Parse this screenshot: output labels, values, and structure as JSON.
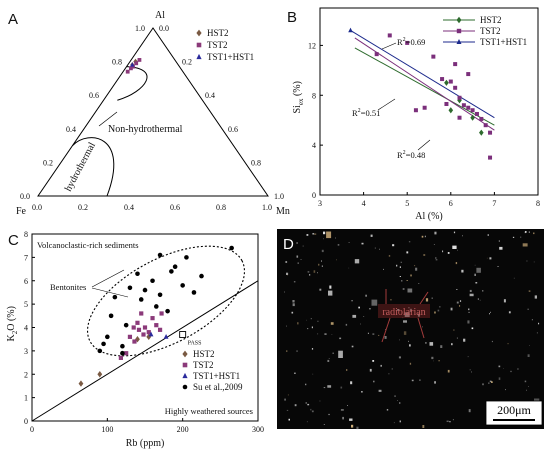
{
  "panels": {
    "A": {
      "letter": "A"
    },
    "B": {
      "letter": "B"
    },
    "C": {
      "letter": "C"
    },
    "D": {
      "letter": "D"
    }
  },
  "chart_data": [
    {
      "type": "scatter",
      "panel": "A",
      "ternary": true,
      "vertices": {
        "top": "Al",
        "left": "Fe",
        "right": "Mn"
      },
      "ticks": [
        "0.0",
        "0.2",
        "0.4",
        "0.6",
        "0.8",
        "1.0"
      ],
      "region_labels": [
        "Non-hydrothermal",
        "hydrothermal"
      ],
      "legend": [
        {
          "name": "HST2",
          "marker": "diamond",
          "color": "#7a5a43"
        },
        {
          "name": "TST2",
          "marker": "square",
          "color": "#8b3a7a"
        },
        {
          "name": "TST1+HST1",
          "marker": "triangle",
          "color": "#2a2a9c"
        }
      ],
      "series": [
        {
          "name": "HST2",
          "points": [
            [
              0.78,
              0.21
            ],
            [
              0.8,
              0.19
            ]
          ]
        },
        {
          "name": "TST2",
          "points": [
            [
              0.74,
              0.25
            ],
            [
              0.76,
              0.23
            ],
            [
              0.77,
              0.22
            ],
            [
              0.79,
              0.2
            ],
            [
              0.81,
              0.18
            ]
          ]
        },
        {
          "name": "TST1+HST1",
          "points": [
            [
              0.78,
              0.21
            ]
          ]
        }
      ]
    },
    {
      "type": "scatter",
      "panel": "B",
      "xlabel": "Al (%)",
      "ylabel": "Si",
      "ylabel_sub": "ex",
      "ylabel_unit": "(%)",
      "xlim": [
        3,
        8
      ],
      "ylim": [
        0,
        15
      ],
      "xticks": [
        3,
        4,
        5,
        6,
        7,
        8
      ],
      "yticks": [
        0,
        4,
        8,
        12
      ],
      "legend": [
        {
          "name": "HST2",
          "color": "#2e6b2e"
        },
        {
          "name": "TST2",
          "color": "#7b2f7b"
        },
        {
          "name": "TST1+HST1",
          "color": "#1c2a8c"
        }
      ],
      "annotations": [
        {
          "text": "R",
          "sup": "2",
          "value": "=0.69"
        },
        {
          "text": "R",
          "sup": "2",
          "value": "=0.51"
        },
        {
          "text": "R",
          "sup": "2",
          "value": "=0.48"
        }
      ],
      "series": [
        {
          "name": "HST2",
          "points": [
            [
              5.9,
              9.0
            ],
            [
              6.2,
              7.6
            ],
            [
              6.5,
              6.2
            ],
            [
              6.7,
              5.0
            ],
            [
              6.0,
              6.8
            ]
          ]
        },
        {
          "name": "TST2",
          "points": [
            [
              4.3,
              11.3
            ],
            [
              4.6,
              12.8
            ],
            [
              5.0,
              12.2
            ],
            [
              5.6,
              11.1
            ],
            [
              5.8,
              9.3
            ],
            [
              6.0,
              9.1
            ],
            [
              6.1,
              8.6
            ],
            [
              6.2,
              7.8
            ],
            [
              6.3,
              7.2
            ],
            [
              6.4,
              7.0
            ],
            [
              6.5,
              6.8
            ],
            [
              6.6,
              6.5
            ],
            [
              6.7,
              6.1
            ],
            [
              6.8,
              5.6
            ],
            [
              6.9,
              5.0
            ],
            [
              6.9,
              3.0
            ],
            [
              5.4,
              7.0
            ],
            [
              5.2,
              6.8
            ],
            [
              6.1,
              10.5
            ],
            [
              6.4,
              9.7
            ],
            [
              6.2,
              6.2
            ],
            [
              5.9,
              7.3
            ]
          ]
        },
        {
          "name": "TST1+HST1",
          "points": [
            [
              3.7,
              13.2
            ]
          ]
        }
      ],
      "regressions": [
        {
          "name": "HST2",
          "from": [
            3.8,
            11.8
          ],
          "to": [
            7.0,
            5.6
          ]
        },
        {
          "name": "TST2",
          "from": [
            3.8,
            12.6
          ],
          "to": [
            7.0,
            5.2
          ]
        },
        {
          "name": "TST1+HST1",
          "from": [
            3.7,
            13.2
          ],
          "to": [
            7.0,
            6.2
          ]
        }
      ]
    },
    {
      "type": "scatter",
      "panel": "C",
      "xlabel": "Rb (ppm)",
      "ylabel": "K",
      "ylabel_sub": "2",
      "ylabel_tail": "O (%)",
      "xlim": [
        0,
        300
      ],
      "ylim": [
        0,
        8
      ],
      "xticks": [
        0,
        100,
        200,
        300
      ],
      "yticks": [
        0,
        1,
        2,
        3,
        4,
        5,
        6,
        7,
        8
      ],
      "annotations": [
        "Volcanoclastic-rich sediments",
        "Bentonites",
        "PASS",
        "Highly weathered sources"
      ],
      "legend": [
        {
          "name": "HST2",
          "marker": "diamond",
          "color": "#7a5a43"
        },
        {
          "name": "TST2",
          "marker": "square",
          "color": "#8b3a7a"
        },
        {
          "name": "TST1+HST1",
          "marker": "triangle",
          "color": "#2a2a9c"
        },
        {
          "name": "Su et al.,2009",
          "marker": "circle",
          "color": "#000000"
        }
      ],
      "series": [
        {
          "name": "HST2",
          "points": [
            [
              65,
              1.6
            ],
            [
              90,
              2.0
            ],
            [
              140,
              3.5
            ],
            [
              155,
              3.6
            ]
          ]
        },
        {
          "name": "TST2",
          "points": [
            [
              118,
              2.7
            ],
            [
              125,
              2.9
            ],
            [
              130,
              3.6
            ],
            [
              135,
              4.0
            ],
            [
              140,
              4.2
            ],
            [
              145,
              4.6
            ],
            [
              150,
              4.0
            ],
            [
              155,
              3.8
            ],
            [
              160,
              4.4
            ],
            [
              165,
              4.1
            ],
            [
              170,
              3.9
            ],
            [
              172,
              4.6
            ],
            [
              148,
              3.7
            ],
            [
              142,
              3.9
            ],
            [
              136,
              3.4
            ]
          ]
        },
        {
          "name": "TST1+HST1",
          "points": [
            [
              158,
              3.7
            ],
            [
              178,
              3.6
            ]
          ]
        },
        {
          "name": "Su et al.,2009",
          "points": [
            [
              90,
              3.0
            ],
            [
              95,
              3.3
            ],
            [
              100,
              3.6
            ],
            [
              105,
              4.5
            ],
            [
              110,
              5.3
            ],
            [
              120,
              3.2
            ],
            [
              125,
              4.1
            ],
            [
              130,
              5.7
            ],
            [
              140,
              6.3
            ],
            [
              145,
              5.2
            ],
            [
              150,
              5.6
            ],
            [
              160,
              6.0
            ],
            [
              165,
              4.9
            ],
            [
              170,
              5.4
            ],
            [
              180,
              4.7
            ],
            [
              185,
              6.4
            ],
            [
              190,
              6.6
            ],
            [
              200,
              5.8
            ],
            [
              205,
              7.0
            ],
            [
              215,
              5.5
            ],
            [
              225,
              6.2
            ],
            [
              265,
              7.4
            ],
            [
              170,
              7.1
            ],
            [
              120,
              2.9
            ]
          ]
        }
      ],
      "reference_lines": [
        {
          "from": [
            0,
            0
          ],
          "to": [
            300,
            6.0
          ]
        }
      ],
      "pass_point": [
        200,
        3.7
      ]
    }
  ],
  "photo": {
    "panel": "D",
    "label": "radiolarian",
    "scalebar": "200μm"
  },
  "colors": {
    "background": "#ffffff",
    "photo_bg": "#070707",
    "annotation_red": "#a33b3b"
  }
}
